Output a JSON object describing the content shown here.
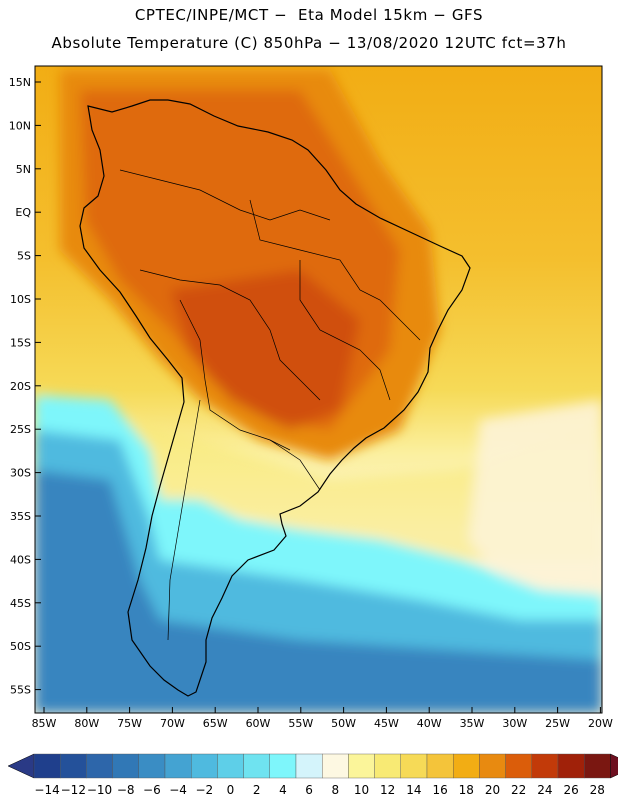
{
  "header": {
    "line1": "CPTEC/INPE/MCT −  Eta Model 15km − GFS",
    "line2": "Absolute Temperature (C) 850hPa − 13/08/2020 12UTC fct=37h"
  },
  "map": {
    "lat_labels": [
      "15N",
      "10N",
      "5N",
      "EQ",
      "5S",
      "10S",
      "15S",
      "20S",
      "25S",
      "30S",
      "35S",
      "40S",
      "45S",
      "50S",
      "55S"
    ],
    "lon_labels": [
      "85W",
      "80W",
      "75W",
      "70W",
      "65W",
      "60W",
      "55W",
      "50W",
      "45W",
      "40W",
      "35W",
      "30W",
      "25W",
      "20W"
    ],
    "field": "Absolute Temperature (C)",
    "level": "850hPa"
  },
  "colorbar": {
    "ticks": [
      "−14",
      "−12",
      "−10",
      "−8",
      "−6",
      "−4",
      "−2",
      "0",
      "2",
      "4",
      "6",
      "8",
      "10",
      "12",
      "14",
      "16",
      "18",
      "20",
      "22",
      "24",
      "26",
      "28"
    ],
    "colors": [
      "#1f3f8c",
      "#24519a",
      "#2d66aa",
      "#3178b6",
      "#3a8dc4",
      "#44a3d2",
      "#4fbadf",
      "#5ecfe8",
      "#6fe3f0",
      "#7ef6fb",
      "#d4f4fb",
      "#fdf8e2",
      "#fbf59a",
      "#f8ea74",
      "#f6da57",
      "#f4c43a",
      "#f2ad14",
      "#e88a10",
      "#db5d0a",
      "#c23a09",
      "#a02109",
      "#7a1711"
    ],
    "under_color": "#2a3a86",
    "over_color": "#6d0f1f"
  }
}
